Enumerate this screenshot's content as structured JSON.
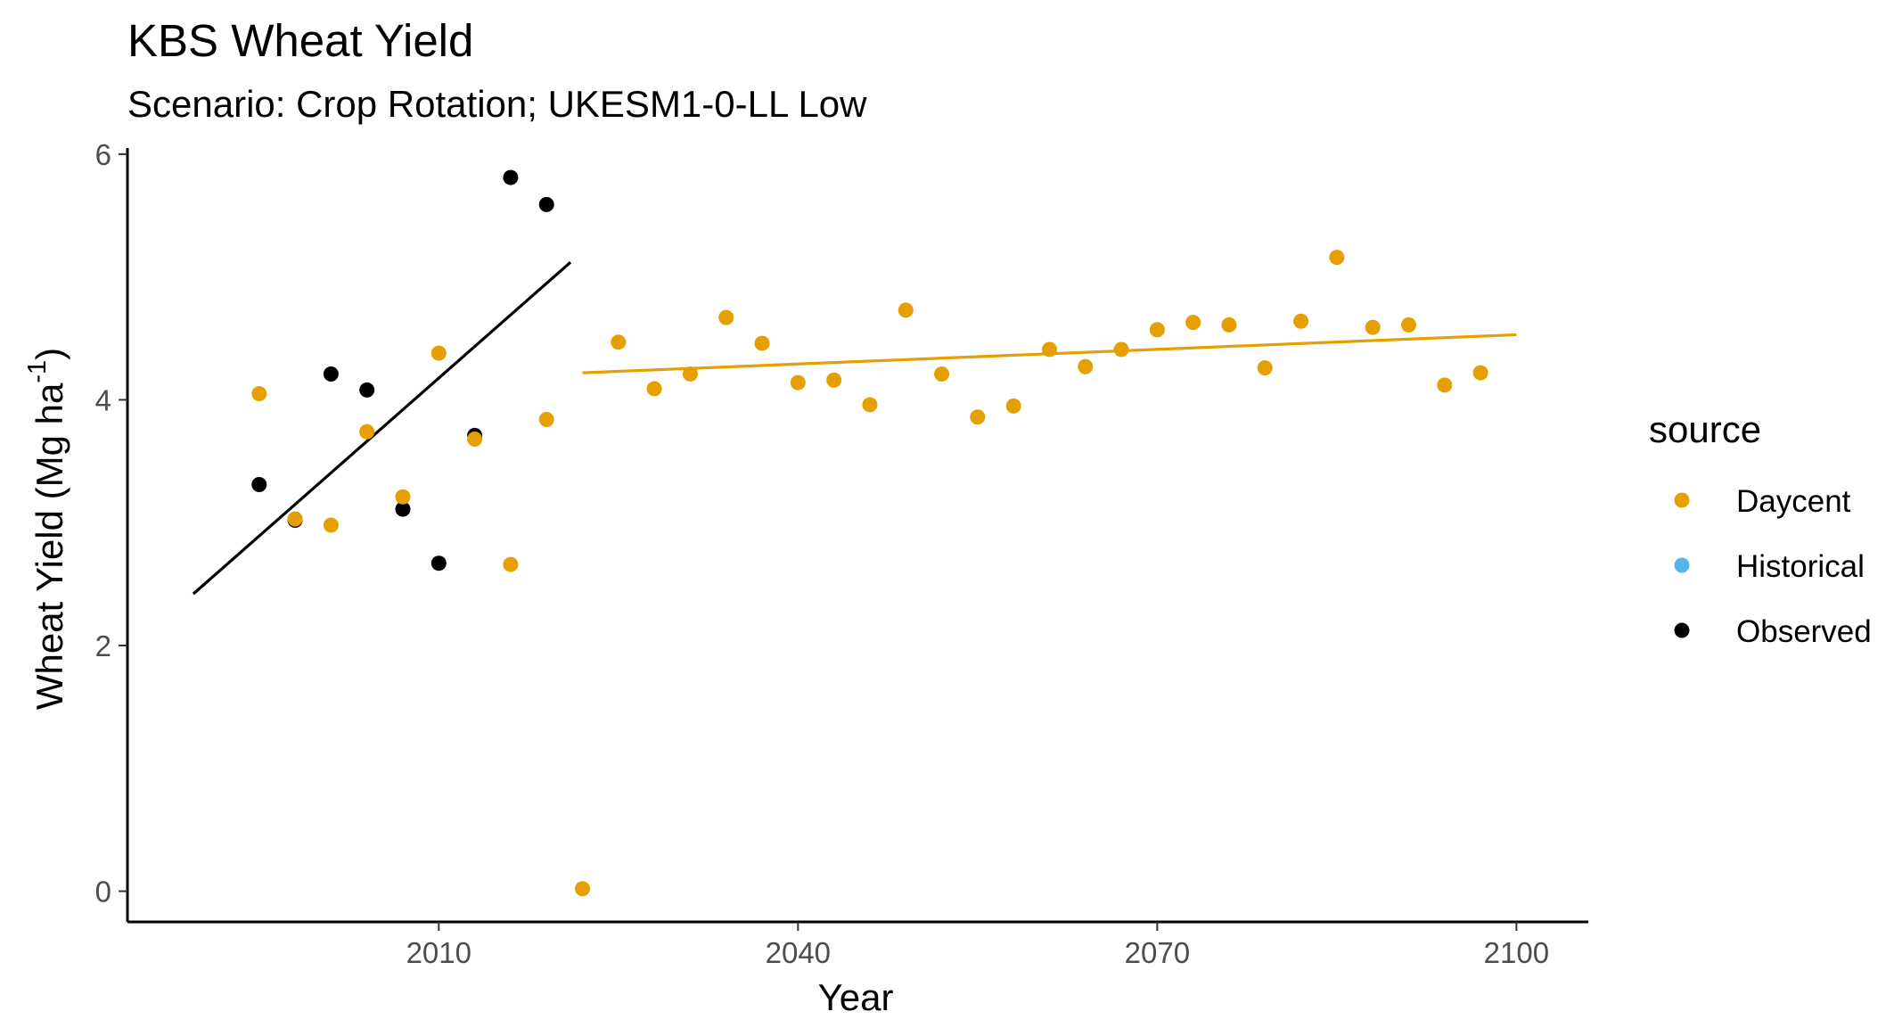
{
  "chart_data": {
    "type": "scatter",
    "title": "KBS Wheat Yield",
    "subtitle": "Scenario: Crop Rotation; UKESM1-0-LL Low",
    "xlabel": "Year",
    "ylabel": "Wheat Yield (Mg ha",
    "ylabel_superscript": "-1",
    "ylabel_suffix": ")",
    "xlim": [
      1984,
      2106
    ],
    "ylim": [
      -0.25,
      6.05
    ],
    "x_ticks": [
      2010,
      2040,
      2070,
      2100
    ],
    "y_ticks": [
      0,
      2,
      4,
      6
    ],
    "grid": false,
    "legend": {
      "title": "source",
      "position": "right",
      "entries": [
        {
          "label": "Daycent",
          "color": "#E69F00"
        },
        {
          "label": "Historical",
          "color": "#56B4E9"
        },
        {
          "label": "Observed",
          "color": "#000000"
        }
      ]
    },
    "series": [
      {
        "name": "Observed",
        "color": "#000000",
        "points": [
          [
            1995,
            3.31
          ],
          [
            1998,
            3.02
          ],
          [
            2001,
            4.21
          ],
          [
            2004,
            4.08
          ],
          [
            2007,
            3.11
          ],
          [
            2010,
            2.67
          ],
          [
            2013,
            3.71
          ],
          [
            2016,
            5.81
          ],
          [
            2019,
            5.59
          ]
        ]
      },
      {
        "name": "Daycent",
        "color": "#E69F00",
        "points": [
          [
            1995,
            4.05
          ],
          [
            1998,
            3.03
          ],
          [
            2001,
            2.98
          ],
          [
            2004,
            3.74
          ],
          [
            2007,
            3.21
          ],
          [
            2010,
            4.38
          ],
          [
            2013,
            3.68
          ],
          [
            2016,
            2.66
          ],
          [
            2019,
            3.84
          ],
          [
            2022,
            0.02
          ],
          [
            2025,
            4.47
          ],
          [
            2028,
            4.09
          ],
          [
            2031,
            4.21
          ],
          [
            2034,
            4.67
          ],
          [
            2037,
            4.46
          ],
          [
            2040,
            4.14
          ],
          [
            2043,
            4.16
          ],
          [
            2046,
            3.96
          ],
          [
            2049,
            4.73
          ],
          [
            2052,
            4.21
          ],
          [
            2055,
            3.86
          ],
          [
            2058,
            3.95
          ],
          [
            2061,
            4.41
          ],
          [
            2064,
            4.27
          ],
          [
            2067,
            4.41
          ],
          [
            2070,
            4.57
          ],
          [
            2073,
            4.63
          ],
          [
            2076,
            4.61
          ],
          [
            2079,
            4.26
          ],
          [
            2082,
            4.64
          ],
          [
            2085,
            5.16
          ],
          [
            2088,
            4.59
          ],
          [
            2091,
            4.61
          ],
          [
            2094,
            4.12
          ],
          [
            2097,
            4.22
          ]
        ]
      }
    ],
    "trend_lines": [
      {
        "series": "Observed",
        "color": "#000000",
        "x": [
          1989.5,
          2021
        ],
        "y": [
          2.42,
          5.12
        ]
      },
      {
        "series": "Daycent",
        "color": "#E69F00",
        "x": [
          2022,
          2100
        ],
        "y": [
          4.22,
          4.53
        ]
      }
    ]
  }
}
